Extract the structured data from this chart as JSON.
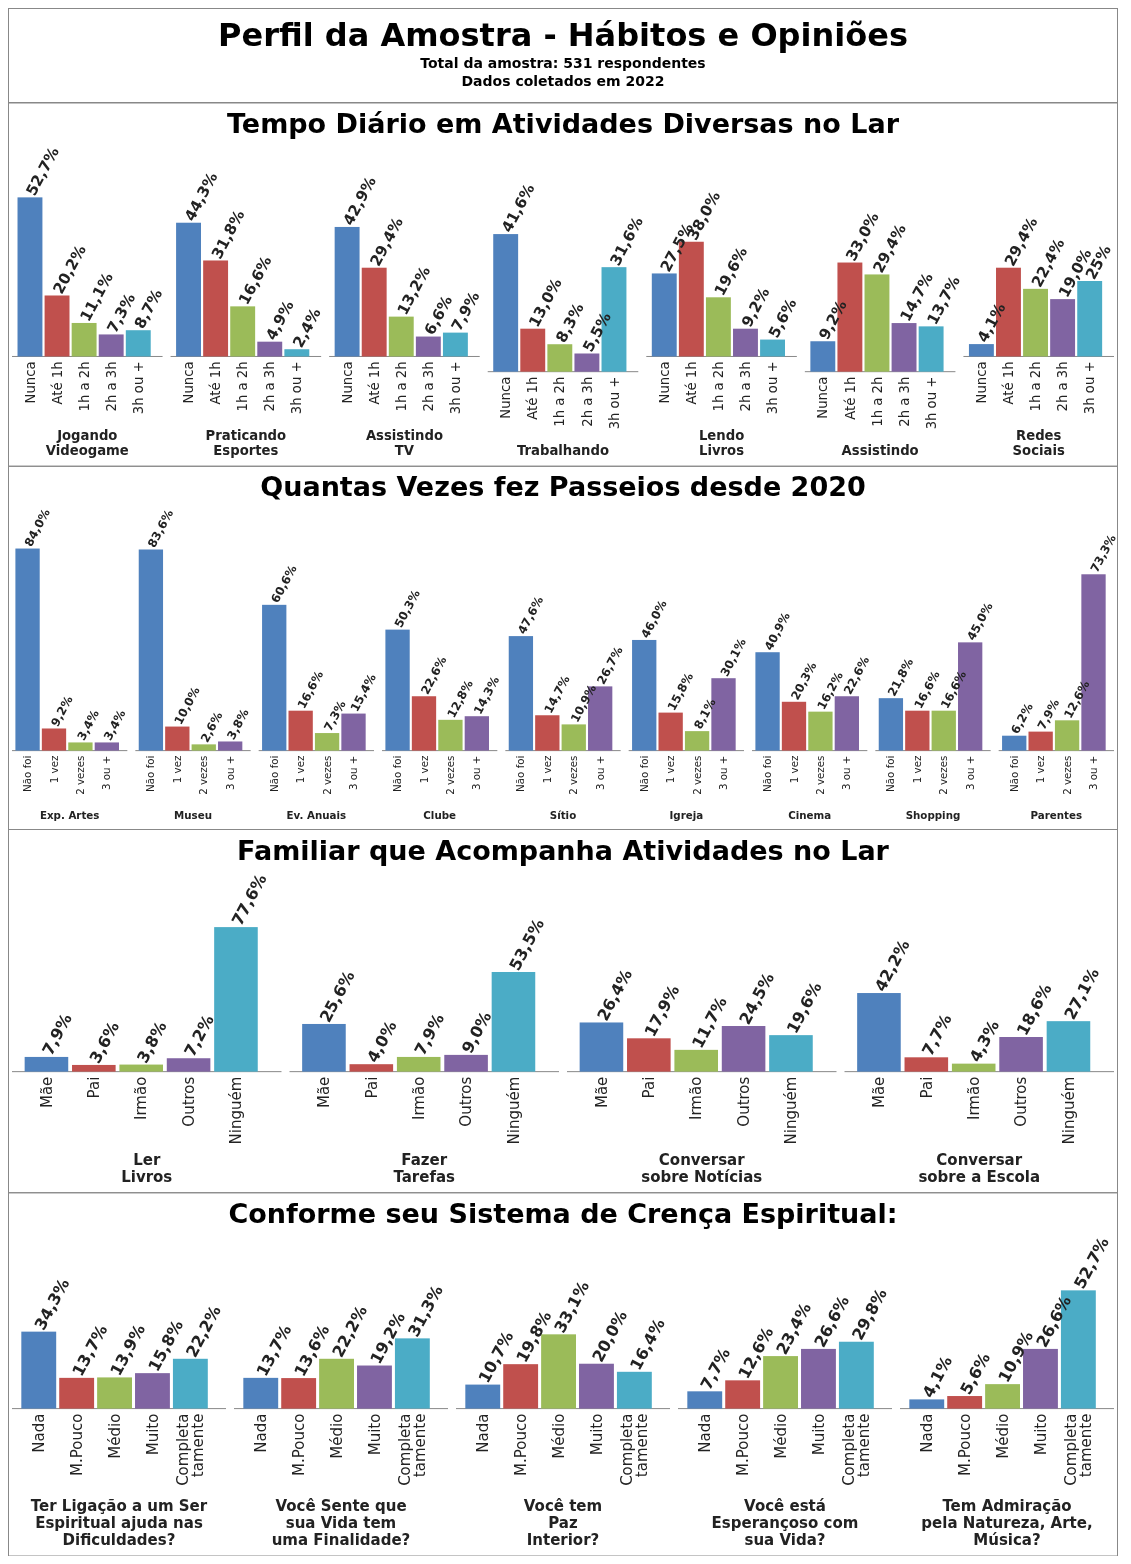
{
  "chart_data": [
    {
      "type": "other",
      "title": "Perfil da Amostra - Hábitos e Opiniões",
      "subtitle": "Total da amostra: 531 respondentes",
      "annotations": [
        "Dados coletados em 2022"
      ]
    },
    {
      "type": "other",
      "title": "Tempo Diário em Atividades Diversas no Lar"
    },
    {
      "type": "bar",
      "xlabel": "Jogando\nVideogame",
      "categories": [
        "Nunca",
        "Até 1h",
        "1h a 2h",
        "2h a 3h",
        "3h ou +"
      ],
      "values": [
        52.7,
        20.2,
        11.1,
        7.3,
        8.7
      ],
      "value_labels": [
        "52,7%",
        "20,2%",
        "11,1%",
        "7,3%",
        "8,7%"
      ],
      "colors": [
        "#4f81bd",
        "#c0504d",
        "#9bbb59",
        "#8064a2",
        "#4bacc6"
      ],
      "tick_labels": "x"
    },
    {
      "type": "bar",
      "xlabel": "Praticando\nEsportes",
      "categories": [
        "Nunca",
        "Até 1h",
        "1h a 2h",
        "2h a 3h",
        "3h ou +"
      ],
      "values": [
        44.3,
        31.8,
        16.6,
        4.9,
        2.4
      ],
      "value_labels": [
        "44,3%",
        "31,8%",
        "16,6%",
        "4,9%",
        "2,4%"
      ],
      "colors": [
        "#4f81bd",
        "#c0504d",
        "#9bbb59",
        "#8064a2",
        "#4bacc6"
      ],
      "tick_labels": "x"
    },
    {
      "type": "bar",
      "xlabel": "Assistindo\nTV",
      "categories": [
        "Nunca",
        "Até 1h",
        "1h a 2h",
        "2h a 3h",
        "3h ou +"
      ],
      "values": [
        42.9,
        29.4,
        13.2,
        6.6,
        7.9
      ],
      "value_labels": [
        "42,9%",
        "29,4%",
        "13,2%",
        "6,6%",
        "7,9%"
      ],
      "colors": [
        "#4f81bd",
        "#c0504d",
        "#9bbb59",
        "#8064a2",
        "#4bacc6"
      ],
      "tick_labels": "x"
    },
    {
      "type": "bar",
      "xlabel": "Trabalhando",
      "categories": [
        "Nunca",
        "Até 1h",
        "1h a 2h",
        "2h a 3h",
        "3h ou +"
      ],
      "values": [
        41.6,
        13.0,
        8.3,
        5.5,
        31.6
      ],
      "value_labels": [
        "41,6%",
        "13,0%",
        "8,3%",
        "5,5%",
        "31,6%"
      ],
      "colors": [
        "#4f81bd",
        "#c0504d",
        "#9bbb59",
        "#8064a2",
        "#4bacc6"
      ],
      "tick_labels": "x"
    },
    {
      "type": "bar",
      "xlabel": "Lendo\nLivros",
      "categories": [
        "Nunca",
        "Até 1h",
        "1h a 2h",
        "2h a 3h",
        "3h ou +"
      ],
      "values": [
        27.5,
        38.0,
        19.6,
        9.2,
        5.6
      ],
      "value_labels": [
        "27,5%",
        "38,0%",
        "19,6%",
        "9,2%",
        "5,6%"
      ],
      "colors": [
        "#4f81bd",
        "#c0504d",
        "#9bbb59",
        "#8064a2",
        "#4bacc6"
      ],
      "tick_labels": "x"
    },
    {
      "type": "bar",
      "xlabel": "Assistindo",
      "categories": [
        "Nunca",
        "Até 1h",
        "1h a 2h",
        "2h a 3h",
        "3h ou +"
      ],
      "values": [
        9.2,
        33.0,
        29.4,
        14.7,
        13.7
      ],
      "value_labels": [
        "9,2%",
        "33,0%",
        "29,4%",
        "14,7%",
        "13,7%"
      ],
      "colors": [
        "#4f81bd",
        "#c0504d",
        "#9bbb59",
        "#8064a2",
        "#4bacc6"
      ],
      "tick_labels": "x"
    },
    {
      "type": "bar",
      "xlabel": "Redes\nSociais",
      "categories": [
        "Nunca",
        "Até 1h",
        "1h a 2h",
        "2h a 3h",
        "3h ou +"
      ],
      "values": [
        4.1,
        29.4,
        22.4,
        19.0,
        25
      ],
      "value_labels": [
        "4,1%",
        "29,4%",
        "22,4%",
        "19,0%",
        "25%"
      ],
      "colors": [
        "#4f81bd",
        "#c0504d",
        "#9bbb59",
        "#8064a2",
        "#4bacc6"
      ],
      "tick_labels": "x"
    },
    {
      "type": "other",
      "title": "Quantas Vezes fez Passeios desde 2020"
    },
    {
      "type": "bar",
      "xlabel": "Exp. Artes",
      "categories": [
        "Não foi",
        "1 vez",
        "2 vezes",
        "3 ou +"
      ],
      "values": [
        84.0,
        9.2,
        3.4,
        3.4
      ],
      "value_labels": [
        "84,0%",
        "9,2%",
        "3,4%",
        "3,4%"
      ],
      "colors": [
        "#4f81bd",
        "#c0504d",
        "#9bbb59",
        "#8064a2"
      ],
      "tick_labels": "x"
    },
    {
      "type": "bar",
      "xlabel": "Museu",
      "categories": [
        "Não foi",
        "1 vez",
        "2 vezes",
        "3 ou +"
      ],
      "values": [
        83.6,
        10.0,
        2.6,
        3.8
      ],
      "value_labels": [
        "83,6%",
        "10,0%",
        "2,6%",
        "3,8%"
      ],
      "colors": [
        "#4f81bd",
        "#c0504d",
        "#9bbb59",
        "#8064a2"
      ],
      "tick_labels": "x"
    },
    {
      "type": "bar",
      "xlabel": "Ev. Anuais",
      "categories": [
        "Não foi",
        "1 vez",
        "2 vezes",
        "3 ou +"
      ],
      "values": [
        60.6,
        16.6,
        7.3,
        15.4
      ],
      "value_labels": [
        "60,6%",
        "16,6%",
        "7,3%",
        "15,4%"
      ],
      "colors": [
        "#4f81bd",
        "#c0504d",
        "#9bbb59",
        "#8064a2"
      ],
      "tick_labels": "x"
    },
    {
      "type": "bar",
      "xlabel": "Clube",
      "categories": [
        "Não foi",
        "1 vez",
        "2 vezes",
        "3 ou +"
      ],
      "values": [
        50.3,
        22.6,
        12.8,
        14.3
      ],
      "value_labels": [
        "50,3%",
        "22,6%",
        "12,8%",
        "14,3%"
      ],
      "colors": [
        "#4f81bd",
        "#c0504d",
        "#9bbb59",
        "#8064a2"
      ],
      "tick_labels": "x"
    },
    {
      "type": "bar",
      "xlabel": "Sítio",
      "categories": [
        "Não foi",
        "1 vez",
        "2 vezes",
        "3 ou +"
      ],
      "values": [
        47.6,
        14.7,
        10.9,
        26.7
      ],
      "value_labels": [
        "47,6%",
        "14,7%",
        "10,9%",
        "26,7%"
      ],
      "colors": [
        "#4f81bd",
        "#c0504d",
        "#9bbb59",
        "#8064a2"
      ],
      "tick_labels": "x"
    },
    {
      "type": "bar",
      "xlabel": "Igreja",
      "categories": [
        "Não foi",
        "1 vez",
        "2 vezes",
        "3 ou +"
      ],
      "values": [
        46.0,
        15.8,
        8.1,
        30.1
      ],
      "value_labels": [
        "46,0%",
        "15,8%",
        "8,1%",
        "30,1%"
      ],
      "colors": [
        "#4f81bd",
        "#c0504d",
        "#9bbb59",
        "#8064a2"
      ],
      "tick_labels": "x"
    },
    {
      "type": "bar",
      "xlabel": "Cinema",
      "categories": [
        "Não foi",
        "1 vez",
        "2 vezes",
        "3 ou +"
      ],
      "values": [
        40.9,
        20.3,
        16.2,
        22.6
      ],
      "value_labels": [
        "40,9%",
        "20,3%",
        "16,2%",
        "22,6%"
      ],
      "colors": [
        "#4f81bd",
        "#c0504d",
        "#9bbb59",
        "#8064a2"
      ],
      "tick_labels": "x"
    },
    {
      "type": "bar",
      "xlabel": "Shopping",
      "categories": [
        "Não foi",
        "1 vez",
        "2 vezes",
        "3 ou +"
      ],
      "values": [
        21.8,
        16.6,
        16.6,
        45.0
      ],
      "value_labels": [
        "21,8%",
        "16,6%",
        "16,6%",
        "45,0%"
      ],
      "colors": [
        "#4f81bd",
        "#c0504d",
        "#9bbb59",
        "#8064a2"
      ],
      "tick_labels": "x"
    },
    {
      "type": "bar",
      "xlabel": "Parentes",
      "categories": [
        "Não foi",
        "1 vez",
        "2 vezes",
        "3 ou +"
      ],
      "values": [
        6.2,
        7.9,
        12.6,
        73.3
      ],
      "value_labels": [
        "6,2%",
        "7,9%",
        "12,6%",
        "73,3%"
      ],
      "colors": [
        "#4f81bd",
        "#c0504d",
        "#9bbb59",
        "#8064a2"
      ],
      "tick_labels": "x"
    },
    {
      "type": "other",
      "title": "Familiar que Acompanha Atividades no Lar"
    },
    {
      "type": "bar",
      "xlabel": "Ler\nLivros",
      "categories": [
        "Mãe",
        "Pai",
        "Irmão",
        "Outros",
        "Ninguém"
      ],
      "values": [
        7.9,
        3.6,
        3.8,
        7.2,
        77.6
      ],
      "value_labels": [
        "7,9%",
        "3,6%",
        "3,8%",
        "7,2%",
        "77,6%"
      ],
      "colors": [
        "#4f81bd",
        "#c0504d",
        "#9bbb59",
        "#8064a2",
        "#4bacc6"
      ],
      "tick_labels": "x"
    },
    {
      "type": "bar",
      "xlabel": "Fazer\nTarefas",
      "categories": [
        "Mãe",
        "Pai",
        "Irmão",
        "Outros",
        "Ninguém"
      ],
      "values": [
        25.6,
        4.0,
        7.9,
        9.0,
        53.5
      ],
      "value_labels": [
        "25,6%",
        "4,0%",
        "7,9%",
        "9,0%",
        "53,5%"
      ],
      "colors": [
        "#4f81bd",
        "#c0504d",
        "#9bbb59",
        "#8064a2",
        "#4bacc6"
      ],
      "tick_labels": "x"
    },
    {
      "type": "bar",
      "xlabel": "Conversar\nsobre Notícias",
      "categories": [
        "Mãe",
        "Pai",
        "Irmão",
        "Outros",
        "Ninguém"
      ],
      "values": [
        26.4,
        17.9,
        11.7,
        24.5,
        19.6
      ],
      "value_labels": [
        "26,4%",
        "17,9%",
        "11,7%",
        "24,5%",
        "19,6%"
      ],
      "colors": [
        "#4f81bd",
        "#c0504d",
        "#9bbb59",
        "#8064a2",
        "#4bacc6"
      ],
      "tick_labels": "x"
    },
    {
      "type": "bar",
      "xlabel": "Conversar\nsobre a Escola",
      "categories": [
        "Mãe",
        "Pai",
        "Irmão",
        "Outros",
        "Ninguém"
      ],
      "values": [
        42.2,
        7.7,
        4.3,
        18.6,
        27.1
      ],
      "value_labels": [
        "42,2%",
        "7,7%",
        "4,3%",
        "18,6%",
        "27,1%"
      ],
      "colors": [
        "#4f81bd",
        "#c0504d",
        "#9bbb59",
        "#8064a2",
        "#4bacc6"
      ],
      "tick_labels": "x"
    },
    {
      "type": "other",
      "title": "Conforme seu Sistema de Crença Espiritual:"
    },
    {
      "type": "bar",
      "xlabel": "Ter Ligação a um Ser\nEspiritual ajuda nas\nDificuldades?",
      "categories": [
        "Nada",
        "M.Pouco",
        "Médio",
        "Muito",
        "Completa\ntamente"
      ],
      "values": [
        34.3,
        13.7,
        13.9,
        15.8,
        22.2
      ],
      "value_labels": [
        "34,3%",
        "13,7%",
        "13,9%",
        "15,8%",
        "22,2%"
      ],
      "colors": [
        "#4f81bd",
        "#c0504d",
        "#9bbb59",
        "#8064a2",
        "#4bacc6"
      ],
      "tick_labels": "x"
    },
    {
      "type": "bar",
      "xlabel": "Você Sente que\nsua Vida tem\numa Finalidade?",
      "categories": [
        "Nada",
        "M.Pouco",
        "Médio",
        "Muito",
        "Completa\ntamente"
      ],
      "values": [
        13.7,
        13.6,
        22.2,
        19.2,
        31.3
      ],
      "value_labels": [
        "13,7%",
        "13,6%",
        "22,2%",
        "19,2%",
        "31,3%"
      ],
      "colors": [
        "#4f81bd",
        "#c0504d",
        "#9bbb59",
        "#8064a2",
        "#4bacc6"
      ],
      "tick_labels": "x"
    },
    {
      "type": "bar",
      "xlabel": "Você tem\nPaz\nInterior?",
      "categories": [
        "Nada",
        "M.Pouco",
        "Médio",
        "Muito",
        "Completa\ntamente"
      ],
      "values": [
        10.7,
        19.8,
        33.1,
        20.0,
        16.4
      ],
      "value_labels": [
        "10,7%",
        "19,8%",
        "33,1%",
        "20,0%",
        "16,4%"
      ],
      "colors": [
        "#4f81bd",
        "#c0504d",
        "#9bbb59",
        "#8064a2",
        "#4bacc6"
      ],
      "tick_labels": "x"
    },
    {
      "type": "bar",
      "xlabel": "Você está\nEsperançoso com\nsua Vida?",
      "categories": [
        "Nada",
        "M.Pouco",
        "Médio",
        "Muito",
        "Completa\ntamente"
      ],
      "values": [
        7.7,
        12.6,
        23.4,
        26.6,
        29.8
      ],
      "value_labels": [
        "7,7%",
        "12,6%",
        "23,4%",
        "26,6%",
        "29,8%"
      ],
      "colors": [
        "#4f81bd",
        "#c0504d",
        "#9bbb59",
        "#8064a2",
        "#4bacc6"
      ],
      "tick_labels": "x"
    },
    {
      "type": "bar",
      "xlabel": "Tem Admiração\npela Natureza, Arte,\nMúsica?",
      "categories": [
        "Nada",
        "M.Pouco",
        "Médio",
        "Muito",
        "Completa\ntamente"
      ],
      "values": [
        4.1,
        5.6,
        10.9,
        26.6,
        52.7
      ],
      "value_labels": [
        "4,1%",
        "5,6%",
        "10,9%",
        "26,6%",
        "52,7%"
      ],
      "colors": [
        "#4f81bd",
        "#c0504d",
        "#9bbb59",
        "#8064a2",
        "#4bacc6"
      ],
      "tick_labels": "x"
    }
  ]
}
